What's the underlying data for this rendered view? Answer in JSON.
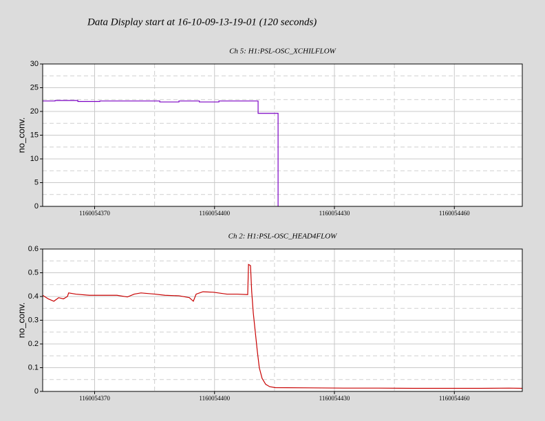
{
  "title": "Data Display start at 16-10-09-13-19-01 (120 seconds)",
  "chart_data": [
    {
      "type": "line",
      "title": "Ch 5: H1:PSL-OSC_XCHILFLOW",
      "ylabel": "no_conv.",
      "xlim": [
        1160054357,
        1160054477
      ],
      "xticks": [
        1160054370,
        1160054400,
        1160054430,
        1160054460
      ],
      "ylim": [
        0,
        30
      ],
      "yticks": [
        0,
        5,
        10,
        15,
        20,
        25,
        30
      ],
      "grid": true,
      "series": [
        {
          "name": "H1:PSL-OSC_XCHILFLOW",
          "color": "#7b00c4",
          "x": [
            1160054357,
            1160054360.1,
            1160054360.1,
            1160054365.8,
            1160054365.8,
            1160054371.3,
            1160054371.3,
            1160054386.3,
            1160054386.3,
            1160054391.1,
            1160054391.1,
            1160054396.2,
            1160054396.2,
            1160054401.1,
            1160054401.1,
            1160054410.9,
            1160054410.9,
            1160054415.9,
            1160054415.9
          ],
          "values": [
            22.2,
            22.2,
            22.3,
            22.3,
            22.1,
            22.1,
            22.2,
            22.2,
            22.0,
            22.0,
            22.2,
            22.2,
            22.0,
            22.0,
            22.2,
            22.2,
            19.6,
            19.6,
            0
          ]
        }
      ]
    },
    {
      "type": "line",
      "title": "Ch 2: H1:PSL-OSC_HEAD4FLOW",
      "ylabel": "no_conv.",
      "xlim": [
        1160054357,
        1160054477
      ],
      "xticks": [
        1160054370,
        1160054400,
        1160054430,
        1160054460
      ],
      "ylim": [
        0,
        0.6
      ],
      "yticks": [
        0,
        0.1,
        0.2,
        0.3,
        0.4,
        0.5,
        0.6
      ],
      "grid": true,
      "series": [
        {
          "name": "H1:PSL-OSC_HEAD4FLOW",
          "color": "#c80000",
          "x": [
            1160054357,
            1160054358.4,
            1160054359.8,
            1160054361,
            1160054362.2,
            1160054363.2,
            1160054363.5,
            1160054365.3,
            1160054368.7,
            1160054372.1,
            1160054375.6,
            1160054378.2,
            1160054379.9,
            1160054381.6,
            1160054385.1,
            1160054387.6,
            1160054391.1,
            1160054393.7,
            1160054394.7,
            1160054395.4,
            1160054397.1,
            1160054399.7,
            1160054403.1,
            1160054405.7,
            1160054408.3,
            1160054408.5,
            1160054409,
            1160054409.3,
            1160054409.7,
            1160054410.2,
            1160054410.7,
            1160054411.2,
            1160054411.9,
            1160054412.8,
            1160054413.8,
            1160054415.2,
            1160054423.8,
            1160054432.4,
            1160054441,
            1160054449.6,
            1160054458.2,
            1160054466.8,
            1160054473.7,
            1160054477
          ],
          "values": [
            0.405,
            0.39,
            0.38,
            0.395,
            0.39,
            0.4,
            0.415,
            0.41,
            0.405,
            0.405,
            0.405,
            0.398,
            0.41,
            0.415,
            0.41,
            0.405,
            0.403,
            0.395,
            0.38,
            0.41,
            0.42,
            0.418,
            0.41,
            0.41,
            0.408,
            0.535,
            0.53,
            0.42,
            0.33,
            0.25,
            0.17,
            0.1,
            0.055,
            0.03,
            0.02,
            0.016,
            0.015,
            0.014,
            0.014,
            0.013,
            0.013,
            0.013,
            0.014,
            0.013
          ]
        }
      ]
    }
  ]
}
